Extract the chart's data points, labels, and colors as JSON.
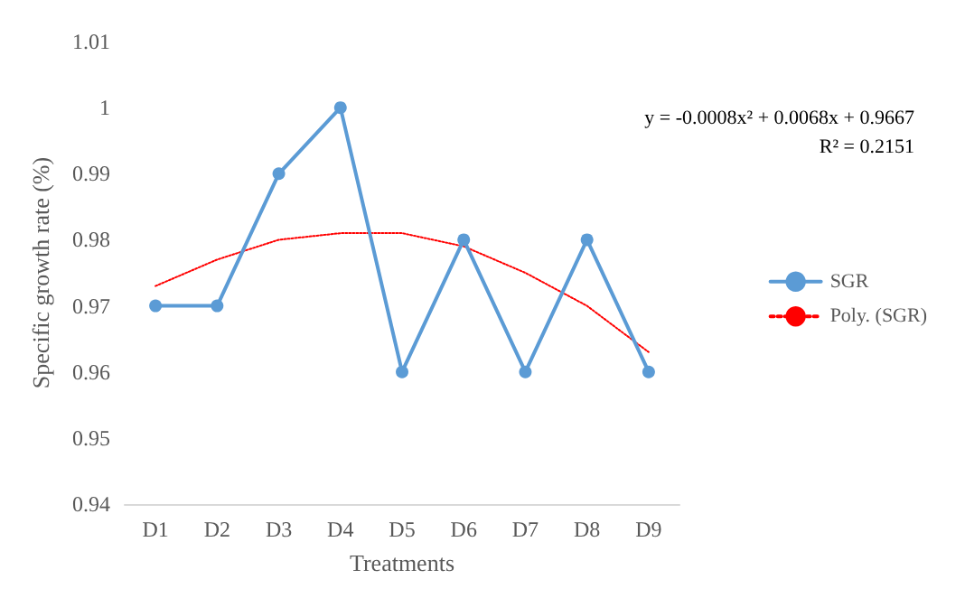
{
  "chart_data": {
    "type": "line",
    "xlabel": "Treatments",
    "ylabel": "Specific growth rate (%)",
    "categories": [
      "D1",
      "D2",
      "D3",
      "D4",
      "D5",
      "D6",
      "D7",
      "D8",
      "D9"
    ],
    "series": [
      {
        "name": "SGR",
        "color": "#5b9bd5",
        "marker": "circle",
        "line_style": "solid",
        "values": [
          0.97,
          0.97,
          0.99,
          1.0,
          0.96,
          0.98,
          0.96,
          0.98,
          0.96
        ]
      },
      {
        "name": "Poly. (SGR)",
        "color": "#ff0000",
        "marker": "none",
        "line_style": "dotted",
        "values": [
          0.973,
          0.977,
          0.98,
          0.981,
          0.981,
          0.979,
          0.975,
          0.97,
          0.963
        ]
      }
    ],
    "ylim": [
      0.94,
      1.01
    ],
    "yticks": [
      0.94,
      0.95,
      0.96,
      0.97,
      0.98,
      0.99,
      1,
      1.01
    ],
    "grid": false,
    "legend": "right",
    "annotations": [
      "y = -0.0008x² + 0.0068x + 0.9667",
      "R² = 0.2151"
    ]
  }
}
